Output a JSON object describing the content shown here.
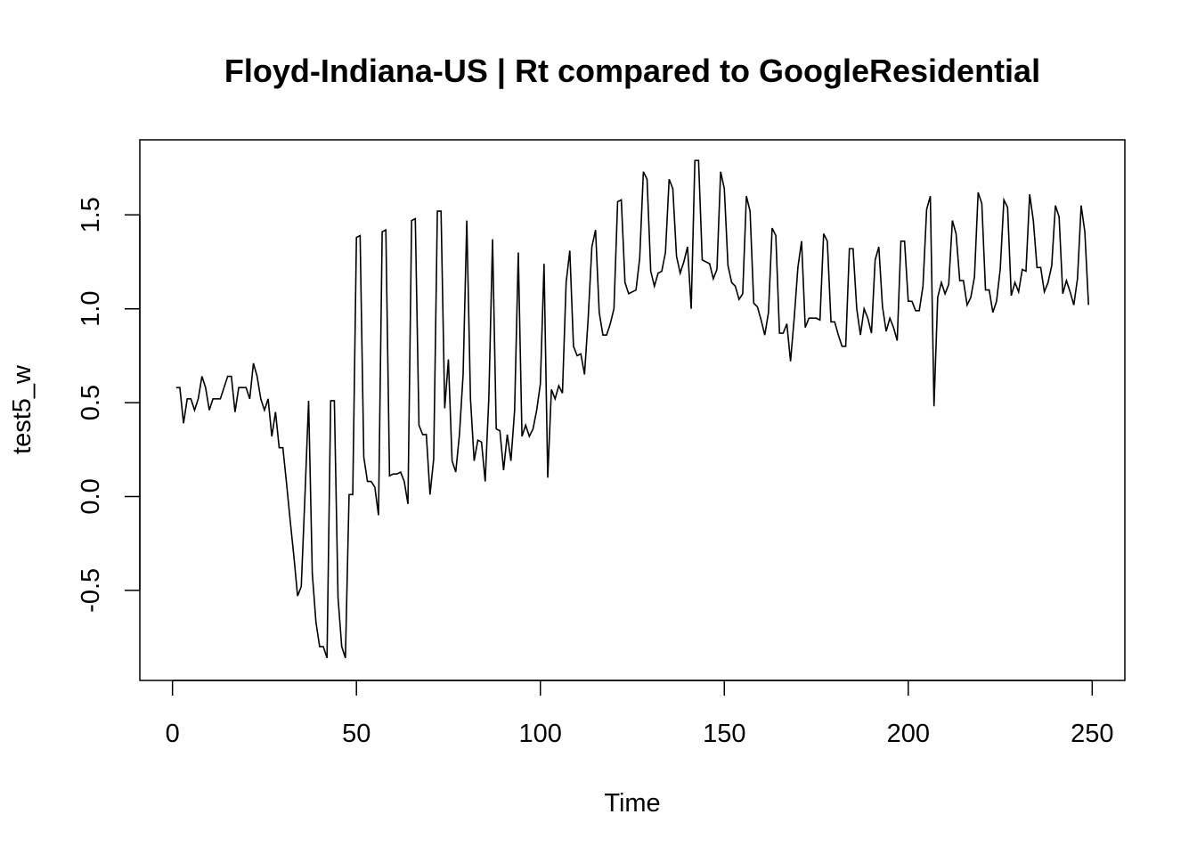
{
  "chart_data": {
    "type": "line",
    "title": "Floyd-Indiana-US | Rt compared to GoogleResidential",
    "xlabel": "Time",
    "ylabel": "test5_w",
    "xlim": [
      -8.88,
      258.88
    ],
    "ylim": [
      -0.98,
      1.9
    ],
    "xticks": [
      0,
      50,
      100,
      150,
      200,
      250
    ],
    "yticks": [
      -0.5,
      0.0,
      0.5,
      1.0,
      1.5
    ],
    "xtick_labels": [
      "0",
      "50",
      "100",
      "150",
      "200",
      "250"
    ],
    "ytick_labels": [
      "-0.5",
      "0.0",
      "0.5",
      "1.0",
      "1.5"
    ],
    "grid": false,
    "line_color": "#000000",
    "x_start": 1,
    "series": [
      {
        "values": [
          0.58,
          0.58,
          0.39,
          0.52,
          0.52,
          0.46,
          0.52,
          0.64,
          0.58,
          0.46,
          0.52,
          0.52,
          0.52,
          0.58,
          0.64,
          0.64,
          0.45,
          0.58,
          0.58,
          0.58,
          0.52,
          0.71,
          0.64,
          0.52,
          0.46,
          0.52,
          0.32,
          0.45,
          0.26,
          0.26,
          0.07,
          -0.13,
          -0.32,
          -0.53,
          -0.48,
          0.0,
          0.51,
          -0.41,
          -0.67,
          -0.8,
          -0.8,
          -0.86,
          0.51,
          0.51,
          -0.54,
          -0.8,
          -0.86,
          0.01,
          0.01,
          1.38,
          1.39,
          0.21,
          0.08,
          0.08,
          0.05,
          -0.1,
          1.41,
          1.42,
          0.11,
          0.12,
          0.12,
          0.13,
          0.08,
          -0.04,
          1.47,
          1.48,
          0.38,
          0.33,
          0.33,
          0.01,
          0.2,
          1.52,
          1.52,
          0.47,
          0.73,
          0.19,
          0.13,
          0.33,
          0.65,
          1.47,
          0.52,
          0.19,
          0.3,
          0.29,
          0.08,
          0.53,
          1.37,
          0.36,
          0.35,
          0.14,
          0.33,
          0.19,
          0.46,
          1.3,
          0.32,
          0.38,
          0.32,
          0.36,
          0.46,
          0.6,
          1.24,
          0.1,
          0.57,
          0.52,
          0.59,
          0.55,
          1.14,
          1.31,
          0.8,
          0.75,
          0.76,
          0.65,
          0.95,
          1.33,
          1.42,
          0.98,
          0.86,
          0.86,
          0.92,
          1.0,
          1.57,
          1.58,
          1.14,
          1.08,
          1.09,
          1.1,
          1.27,
          1.73,
          1.69,
          1.2,
          1.12,
          1.19,
          1.2,
          1.3,
          1.69,
          1.64,
          1.28,
          1.19,
          1.25,
          1.33,
          1.0,
          1.79,
          1.79,
          1.26,
          1.25,
          1.24,
          1.16,
          1.21,
          1.73,
          1.64,
          1.23,
          1.14,
          1.12,
          1.05,
          1.08,
          1.6,
          1.52,
          1.03,
          1.01,
          0.94,
          0.86,
          0.98,
          1.43,
          1.39,
          0.87,
          0.87,
          0.92,
          0.72,
          0.95,
          1.22,
          1.36,
          0.9,
          0.95,
          0.95,
          0.95,
          0.94,
          1.4,
          1.36,
          0.93,
          0.93,
          0.86,
          0.8,
          0.8,
          1.32,
          1.32,
          1.0,
          0.86,
          1.0,
          0.95,
          0.87,
          1.26,
          1.33,
          1.01,
          0.88,
          0.95,
          0.9,
          0.83,
          1.36,
          1.36,
          1.04,
          1.04,
          0.99,
          0.99,
          1.12,
          1.53,
          1.6,
          0.48,
          1.06,
          1.14,
          1.08,
          1.13,
          1.47,
          1.4,
          1.15,
          1.15,
          1.02,
          1.06,
          1.17,
          1.62,
          1.56,
          1.1,
          1.1,
          0.98,
          1.04,
          1.21,
          1.58,
          1.54,
          1.07,
          1.14,
          1.09,
          1.21,
          1.2,
          1.61,
          1.47,
          1.22,
          1.22,
          1.09,
          1.14,
          1.23,
          1.55,
          1.49,
          1.08,
          1.15,
          1.09,
          1.02,
          1.16,
          1.55,
          1.41,
          1.02
        ]
      }
    ]
  }
}
